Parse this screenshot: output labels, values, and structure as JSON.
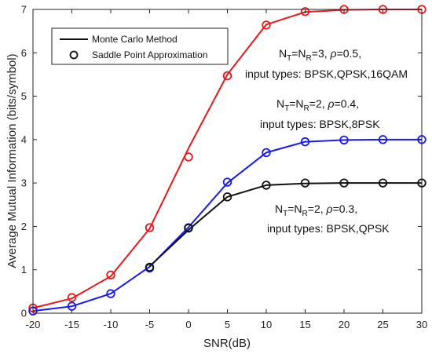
{
  "chart_data": {
    "type": "line",
    "xlabel": "SNR(dB)",
    "ylabel": "Average Mutual Information (bits/symbol)",
    "xlim": [
      -20,
      30
    ],
    "ylim": [
      0,
      7
    ],
    "x_ticks": [
      "-20",
      "-15",
      "-10",
      "-5",
      "0",
      "5",
      "10",
      "15",
      "20",
      "25",
      "30"
    ],
    "y_ticks": [
      "0",
      "1",
      "2",
      "3",
      "4",
      "5",
      "6",
      "7"
    ],
    "grid": false,
    "legend": {
      "placement": "top-left",
      "entries": [
        "Monte Carlo Method",
        "Saddle Point Approximation"
      ]
    },
    "x": [
      -20,
      -15,
      -10,
      -5,
      0,
      5,
      10,
      15,
      20,
      25,
      30
    ],
    "series": [
      {
        "color": "#e8191b",
        "line_values": [
          0.12,
          0.34,
          0.85,
          1.95,
          3.8,
          5.5,
          6.65,
          6.94,
          6.99,
          7.0,
          7.0
        ],
        "marker_values": [
          0.12,
          0.36,
          0.88,
          1.97,
          3.6,
          5.47,
          6.64,
          6.95,
          7.0,
          7.0,
          7.0
        ]
      },
      {
        "color": "#1a1af0",
        "line_values": [
          0.05,
          0.16,
          0.45,
          1.07,
          1.98,
          3.0,
          3.7,
          3.95,
          3.99,
          4.0,
          4.0
        ],
        "marker_values": [
          0.05,
          0.16,
          0.45,
          1.04,
          1.97,
          3.02,
          3.7,
          3.95,
          3.99,
          4.0,
          4.0
        ]
      },
      {
        "color": "#111111",
        "line_values": [
          null,
          null,
          null,
          1.08,
          1.92,
          2.68,
          2.95,
          2.99,
          3.0,
          3.0,
          3.0
        ],
        "marker_values": [
          null,
          null,
          null,
          1.06,
          1.96,
          2.68,
          2.95,
          3.0,
          3.0,
          3.0,
          3.0
        ]
      }
    ],
    "annotations": [
      {
        "line1": {
          "n": "N",
          "t": "T",
          "eq": "=",
          "n2": "N",
          "r": "R",
          "rest": "=3, ",
          "rho": "ρ",
          "val": "=0.5,"
        },
        "line2": "input types: BPSK,QPSK,16QAM"
      },
      {
        "line1": {
          "n": "N",
          "t": "T",
          "eq": "=",
          "n2": "N",
          "r": "R",
          "rest": "=2, ",
          "rho": "ρ",
          "val": "=0.4,"
        },
        "line2": "input types: BPSK,8PSK"
      },
      {
        "line1": {
          "n": "N",
          "t": "T",
          "eq": "=",
          "n2": "N",
          "r": "R",
          "rest": "=2, ",
          "rho": "ρ",
          "val": "=0.3,"
        },
        "line2": "input types: BPSK,QPSK"
      }
    ]
  }
}
